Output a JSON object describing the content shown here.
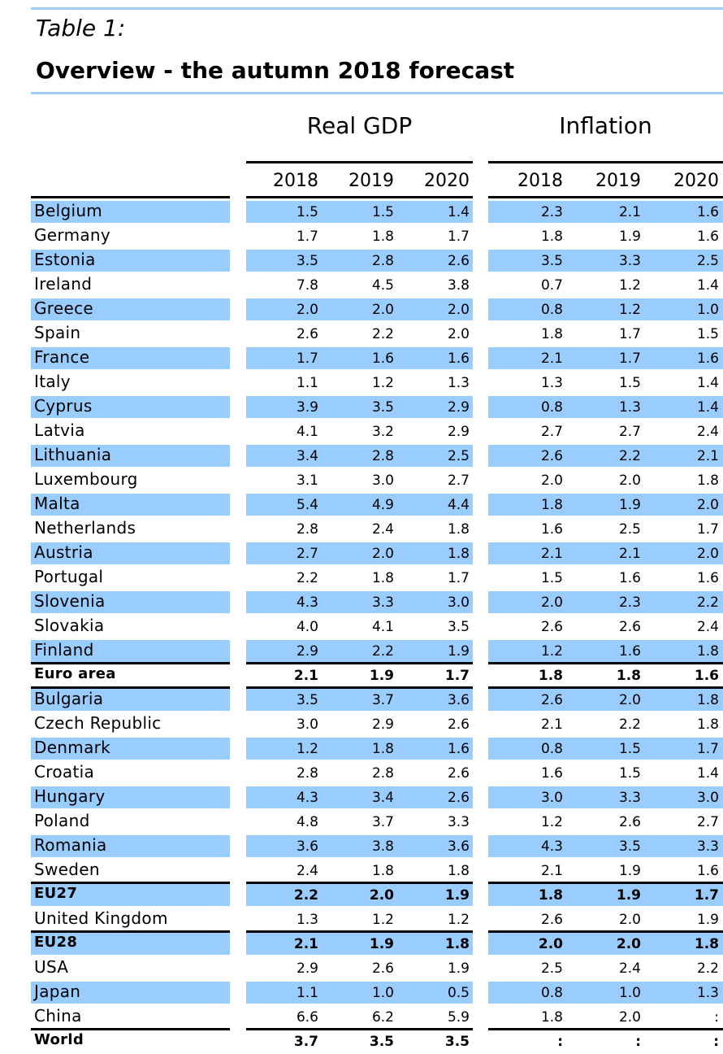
{
  "header": {
    "label": "Table 1:",
    "title": "Overview - the autumn 2018 forecast"
  },
  "table": {
    "groups": [
      "Real GDP",
      "Inflation"
    ],
    "years": [
      [
        "2018",
        "2019",
        "2020"
      ],
      [
        "2018",
        "2019",
        "2020"
      ]
    ],
    "rows": [
      [
        "Belgium",
        "1.5",
        "1.5",
        "1.4",
        "2.3",
        "2.1",
        "1.6"
      ],
      [
        "Germany",
        "1.7",
        "1.8",
        "1.7",
        "1.8",
        "1.9",
        "1.6"
      ],
      [
        "Estonia",
        "3.5",
        "2.8",
        "2.6",
        "3.5",
        "3.3",
        "2.5"
      ],
      [
        "Ireland",
        "7.8",
        "4.5",
        "3.8",
        "0.7",
        "1.2",
        "1.4"
      ],
      [
        "Greece",
        "2.0",
        "2.0",
        "2.0",
        "0.8",
        "1.2",
        "1.0"
      ],
      [
        "Spain",
        "2.6",
        "2.2",
        "2.0",
        "1.8",
        "1.7",
        "1.5"
      ],
      [
        "France",
        "1.7",
        "1.6",
        "1.6",
        "2.1",
        "1.7",
        "1.6"
      ],
      [
        "Italy",
        "1.1",
        "1.2",
        "1.3",
        "1.3",
        "1.5",
        "1.4"
      ],
      [
        "Cyprus",
        "3.9",
        "3.5",
        "2.9",
        "0.8",
        "1.3",
        "1.4"
      ],
      [
        "Latvia",
        "4.1",
        "3.2",
        "2.9",
        "2.7",
        "2.7",
        "2.4"
      ],
      [
        "Lithuania",
        "3.4",
        "2.8",
        "2.5",
        "2.6",
        "2.2",
        "2.1"
      ],
      [
        "Luxembourg",
        "3.1",
        "3.0",
        "2.7",
        "2.0",
        "2.0",
        "1.8"
      ],
      [
        "Malta",
        "5.4",
        "4.9",
        "4.4",
        "1.8",
        "1.9",
        "2.0"
      ],
      [
        "Netherlands",
        "2.8",
        "2.4",
        "1.8",
        "1.6",
        "2.5",
        "1.7"
      ],
      [
        "Austria",
        "2.7",
        "2.0",
        "1.8",
        "2.1",
        "2.1",
        "2.0"
      ],
      [
        "Portugal",
        "2.2",
        "1.8",
        "1.7",
        "1.5",
        "1.6",
        "1.6"
      ],
      [
        "Slovenia",
        "4.3",
        "3.3",
        "3.0",
        "2.0",
        "2.3",
        "2.2"
      ],
      [
        "Slovakia",
        "4.0",
        "4.1",
        "3.5",
        "2.6",
        "2.6",
        "2.4"
      ],
      [
        "Finland",
        "2.9",
        "2.2",
        "1.9",
        "1.2",
        "1.6",
        "1.8"
      ],
      [
        "Euro area",
        "2.1",
        "1.9",
        "1.7",
        "1.8",
        "1.8",
        "1.6"
      ],
      [
        "Bulgaria",
        "3.5",
        "3.7",
        "3.6",
        "2.6",
        "2.0",
        "1.8"
      ],
      [
        "Czech Republic",
        "3.0",
        "2.9",
        "2.6",
        "2.1",
        "2.2",
        "1.8"
      ],
      [
        "Denmark",
        "1.2",
        "1.8",
        "1.6",
        "0.8",
        "1.5",
        "1.7"
      ],
      [
        "Croatia",
        "2.8",
        "2.8",
        "2.6",
        "1.6",
        "1.5",
        "1.4"
      ],
      [
        "Hungary",
        "4.3",
        "3.4",
        "2.6",
        "3.0",
        "3.3",
        "3.0"
      ],
      [
        "Poland",
        "4.8",
        "3.7",
        "3.3",
        "1.2",
        "2.6",
        "2.7"
      ],
      [
        "Romania",
        "3.6",
        "3.8",
        "3.6",
        "4.3",
        "3.5",
        "3.3"
      ],
      [
        "Sweden",
        "2.4",
        "1.8",
        "1.8",
        "2.1",
        "1.9",
        "1.6"
      ],
      [
        "EU27",
        "2.2",
        "2.0",
        "1.9",
        "1.8",
        "1.9",
        "1.7"
      ],
      [
        "United Kingdom",
        "1.3",
        "1.2",
        "1.2",
        "2.6",
        "2.0",
        "1.9"
      ],
      [
        "EU28",
        "2.1",
        "1.9",
        "1.8",
        "2.0",
        "2.0",
        "1.8"
      ],
      [
        "USA",
        "2.9",
        "2.6",
        "1.9",
        "2.5",
        "2.4",
        "2.2"
      ],
      [
        "Japan",
        "1.1",
        "1.0",
        "0.5",
        "0.8",
        "1.0",
        "1.3"
      ],
      [
        "China",
        "6.6",
        "6.2",
        "5.9",
        "1.8",
        "2.0",
        ":"
      ],
      [
        "World",
        "3.7",
        "3.5",
        "3.5",
        ":",
        ":",
        ":"
      ]
    ]
  }
}
